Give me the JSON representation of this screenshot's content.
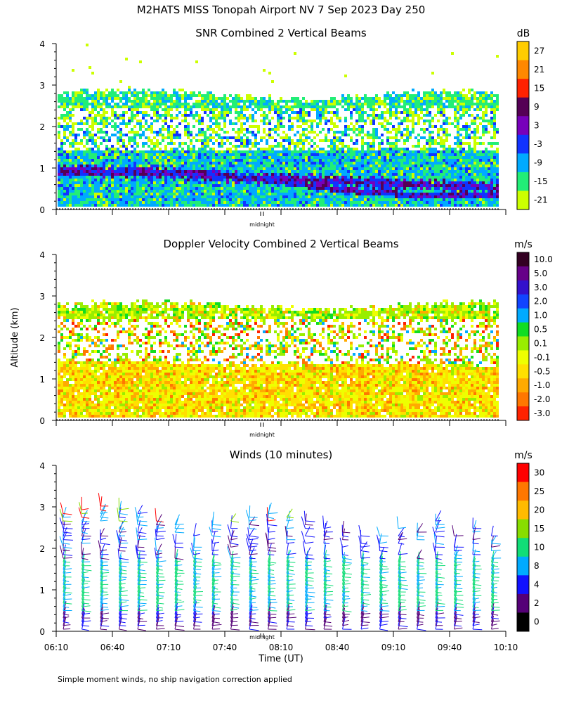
{
  "title": "M2HATS MISS Tonopah Airport NV   7 Sep 2023 Day 250",
  "shared": {
    "ylabel": "Altitude (km)",
    "xlabel": "Time (UT)",
    "midnight_label": "midnight",
    "footnote": "Simple moment winds, no ship navigation correction applied",
    "x_ticks": [
      "06:10",
      "06:40",
      "07:10",
      "07:40",
      "08:10",
      "08:40",
      "09:10",
      "09:40",
      "10:10"
    ],
    "y_ticks": [
      "0",
      "1",
      "2",
      "3",
      "4"
    ],
    "ylim": [
      0,
      4
    ],
    "time_range_min": [
      370,
      610
    ]
  },
  "chart_data": [
    {
      "type": "heatmap",
      "title": "SNR Combined 2 Vertical Beams",
      "unit": "dB",
      "ylabel": "Altitude (km)",
      "ylim": [
        0,
        4
      ],
      "colorbar": {
        "labels": [
          "27",
          "21",
          "15",
          "9",
          "3",
          "-3",
          "-9",
          "-15",
          "-21"
        ],
        "colors": [
          "#ffcc00",
          "#ff8800",
          "#ff2200",
          "#550055",
          "#7700bb",
          "#1133ff",
          "#00aaff",
          "#22ee77",
          "#ccff00"
        ]
      }
    },
    {
      "type": "heatmap",
      "title": "Doppler Velocity Combined 2 Vertical Beams",
      "unit": "m/s",
      "ylabel": "Altitude (km)",
      "ylim": [
        0,
        4
      ],
      "colorbar": {
        "labels": [
          "10.0",
          "5.0",
          "3.0",
          "2.0",
          "1.0",
          "0.5",
          "0.1",
          "-0.1",
          "-0.5",
          "-1.0",
          "-2.0",
          "-3.0"
        ],
        "colors": [
          "#330022",
          "#660088",
          "#3311cc",
          "#1144ff",
          "#00aaff",
          "#11dd22",
          "#99ee00",
          "#eeff00",
          "#ffe000",
          "#ffaa00",
          "#ff7700",
          "#ff2200"
        ]
      }
    },
    {
      "type": "scatter",
      "title": "Winds (10 minutes)",
      "unit": "m/s",
      "ylabel": "Altitude (km)",
      "xlabel": "Time (UT)",
      "ylim": [
        0,
        4
      ],
      "colorbar": {
        "labels": [
          "30",
          "25",
          "20",
          "15",
          "10",
          "8",
          "4",
          "2",
          "0"
        ],
        "colors": [
          "#ff0000",
          "#ff7700",
          "#ffbb00",
          "#88dd00",
          "#11dd77",
          "#00aaff",
          "#1111ff",
          "#550077",
          "#000000"
        ]
      }
    }
  ]
}
